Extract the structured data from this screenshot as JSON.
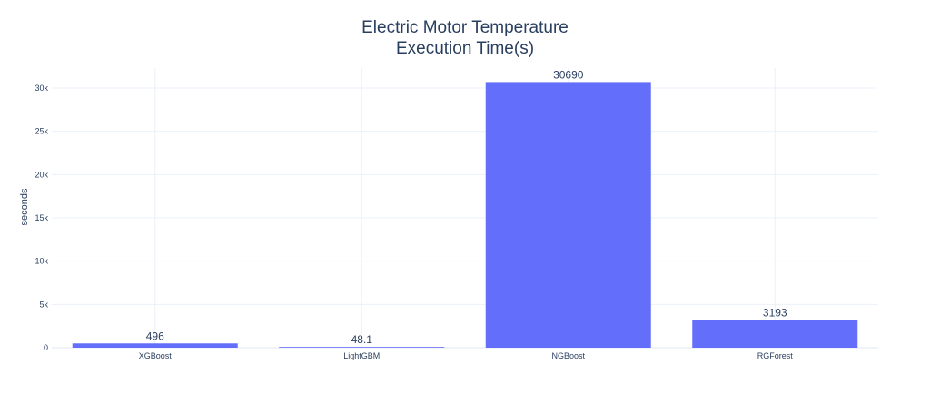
{
  "chart_data": {
    "type": "bar",
    "title": [
      "Electric Motor Temperature",
      "Execution Time(s)"
    ],
    "xlabel": "",
    "ylabel": "seconds",
    "categories": [
      "XGBoost",
      "LightGBM",
      "NGBoost",
      "RGForest"
    ],
    "values": [
      496,
      48.1,
      30690,
      3193
    ],
    "value_labels": [
      "496",
      "48.1",
      "30690",
      "3193"
    ],
    "ylim": [
      0,
      32305
    ],
    "yticks": [
      0,
      5000,
      10000,
      15000,
      20000,
      25000,
      30000
    ],
    "ytick_labels": [
      "0",
      "5k",
      "10k",
      "15k",
      "20k",
      "25k",
      "30k"
    ],
    "grid": true,
    "bar_color": "#636efa",
    "grid_color": "#ebf0f8",
    "text_color": "#2a3f5f"
  }
}
